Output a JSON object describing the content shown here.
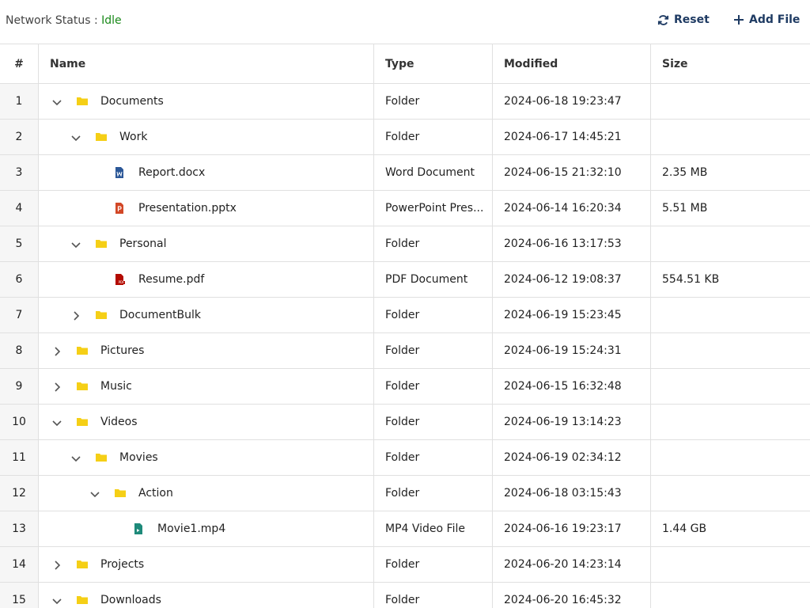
{
  "toolbar": {
    "status_label": "Network Status :",
    "status_value": "Idle",
    "buttons": [
      "Reset",
      "Add File"
    ]
  },
  "table": {
    "headers": [
      "#",
      "Name",
      "Type",
      "Modified",
      "Size"
    ],
    "rows": [
      {
        "index": 1,
        "name": "Documents",
        "type": "Folder",
        "modified": "2024-06-18 19:23:47",
        "size": null,
        "depth": 0,
        "toggle": "open",
        "icon": "folder"
      },
      {
        "index": 2,
        "name": "Work",
        "type": "Folder",
        "modified": "2024-06-17 14:45:21",
        "size": null,
        "depth": 1,
        "toggle": "open",
        "icon": "folder"
      },
      {
        "index": 3,
        "name": "Report.docx",
        "type": "Word Document",
        "modified": "2024-06-15 21:32:10",
        "size": "2.35 MB",
        "depth": 2,
        "toggle": null,
        "icon": "word"
      },
      {
        "index": 4,
        "name": "Presentation.pptx",
        "type": "PowerPoint Pres...",
        "modified": "2024-06-14 16:20:34",
        "size": "5.51 MB",
        "depth": 2,
        "toggle": null,
        "icon": "powerpoint"
      },
      {
        "index": 5,
        "name": "Personal",
        "type": "Folder",
        "modified": "2024-06-16 13:17:53",
        "size": null,
        "depth": 1,
        "toggle": "open",
        "icon": "folder"
      },
      {
        "index": 6,
        "name": "Resume.pdf",
        "type": "PDF Document",
        "modified": "2024-06-12 19:08:37",
        "size": "554.51 KB",
        "depth": 2,
        "toggle": null,
        "icon": "pdf"
      },
      {
        "index": 7,
        "name": "DocumentBulk",
        "type": "Folder",
        "modified": "2024-06-19 15:23:45",
        "size": null,
        "depth": 1,
        "toggle": "closed",
        "icon": "folder"
      },
      {
        "index": 8,
        "name": "Pictures",
        "type": "Folder",
        "modified": "2024-06-19 15:24:31",
        "size": null,
        "depth": 0,
        "toggle": "closed",
        "icon": "folder"
      },
      {
        "index": 9,
        "name": "Music",
        "type": "Folder",
        "modified": "2024-06-15 16:32:48",
        "size": null,
        "depth": 0,
        "toggle": "closed",
        "icon": "folder"
      },
      {
        "index": 10,
        "name": "Videos",
        "type": "Folder",
        "modified": "2024-06-19 13:14:23",
        "size": null,
        "depth": 0,
        "toggle": "open",
        "icon": "folder"
      },
      {
        "index": 11,
        "name": "Movies",
        "type": "Folder",
        "modified": "2024-06-19 02:34:12",
        "size": null,
        "depth": 1,
        "toggle": "open",
        "icon": "folder"
      },
      {
        "index": 12,
        "name": "Action",
        "type": "Folder",
        "modified": "2024-06-18 03:15:43",
        "size": null,
        "depth": 2,
        "toggle": "open",
        "icon": "folder"
      },
      {
        "index": 13,
        "name": "Movie1.mp4",
        "type": "MP4 Video File",
        "modified": "2024-06-16 19:23:17",
        "size": "1.44 GB",
        "depth": 3,
        "toggle": null,
        "icon": "video"
      },
      {
        "index": 14,
        "name": "Projects",
        "type": "Folder",
        "modified": "2024-06-20 14:23:14",
        "size": null,
        "depth": 0,
        "toggle": "closed",
        "icon": "folder"
      },
      {
        "index": 15,
        "name": "Downloads",
        "type": "Folder",
        "modified": "2024-06-20 16:45:32",
        "size": null,
        "depth": 0,
        "toggle": "open",
        "icon": "folder"
      }
    ]
  }
}
